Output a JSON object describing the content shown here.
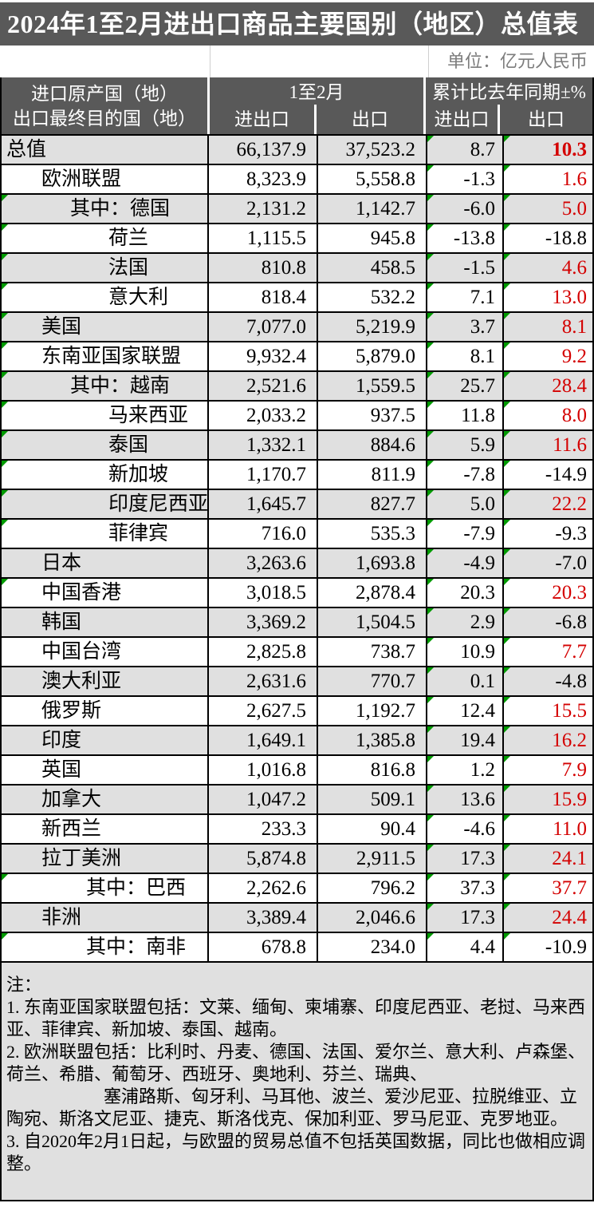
{
  "title": "2024年1至2月进出口商品主要国别（地区）总值表",
  "unit_label": "单位：亿元人民币",
  "colors": {
    "header_bg": "#595959",
    "alt_row_bg": "#e0e0e0",
    "positive_export_red": "#d40000",
    "corner_flag_green": "#009a00",
    "unit_text_gray": "#7c7c7c"
  },
  "header": {
    "name_col": [
      "进口原产国（地）",
      "出口最终目的国（地）"
    ],
    "group_month": "1至2月",
    "group_yoy": "累计比去年同期±%",
    "sub": [
      "进出口",
      "出口",
      "进出口",
      "出口"
    ]
  },
  "table": {
    "rows": [
      {
        "name": "总值",
        "indent": 0,
        "corner": false,
        "values": [
          "66,137.9",
          "37,523.2",
          "8.7",
          "10.3"
        ],
        "bold_export_pct": true
      },
      {
        "name": "欧洲联盟",
        "indent": 1,
        "corner": false,
        "values": [
          "8,323.9",
          "5,558.8",
          "-1.3",
          "1.6"
        ]
      },
      {
        "name": "其中：德国",
        "indent": 2,
        "corner": true,
        "values": [
          "2,131.2",
          "1,142.7",
          "-6.0",
          "5.0"
        ]
      },
      {
        "name": "荷兰",
        "indent": 4,
        "corner": true,
        "values": [
          "1,115.5",
          "945.8",
          "-13.8",
          "-18.8"
        ]
      },
      {
        "name": "法国",
        "indent": 4,
        "corner": true,
        "values": [
          "810.8",
          "458.5",
          "-1.5",
          "4.6"
        ]
      },
      {
        "name": "意大利",
        "indent": 4,
        "corner": true,
        "values": [
          "818.4",
          "532.2",
          "7.1",
          "13.0"
        ]
      },
      {
        "name": "美国",
        "indent": 1,
        "corner": true,
        "values": [
          "7,077.0",
          "5,219.9",
          "3.7",
          "8.1"
        ]
      },
      {
        "name": "东南亚国家联盟",
        "indent": 1,
        "corner": true,
        "values": [
          "9,932.4",
          "5,879.0",
          "8.1",
          "9.2"
        ]
      },
      {
        "name": "其中：越南",
        "indent": 2,
        "corner": true,
        "values": [
          "2,521.6",
          "1,559.5",
          "25.7",
          "28.4"
        ]
      },
      {
        "name": "马来西亚",
        "indent": 4,
        "corner": true,
        "values": [
          "2,033.2",
          "937.5",
          "11.8",
          "8.0"
        ]
      },
      {
        "name": "泰国",
        "indent": 4,
        "corner": true,
        "values": [
          "1,332.1",
          "884.6",
          "5.9",
          "11.6"
        ]
      },
      {
        "name": "新加坡",
        "indent": 4,
        "corner": true,
        "values": [
          "1,170.7",
          "811.9",
          "-7.8",
          "-14.9"
        ]
      },
      {
        "name": "印度尼西亚",
        "indent": 4,
        "corner": true,
        "values": [
          "1,645.7",
          "827.7",
          "5.0",
          "22.2"
        ]
      },
      {
        "name": "菲律宾",
        "indent": 4,
        "corner": true,
        "values": [
          "716.0",
          "535.3",
          "-7.9",
          "-9.3"
        ]
      },
      {
        "name": "日本",
        "indent": 1,
        "corner": false,
        "values": [
          "3,263.6",
          "1,693.8",
          "-4.9",
          "-7.0"
        ]
      },
      {
        "name": "中国香港",
        "indent": 1,
        "corner": true,
        "values": [
          "3,018.5",
          "2,878.4",
          "20.3",
          "20.3"
        ]
      },
      {
        "name": "韩国",
        "indent": 1,
        "corner": false,
        "values": [
          "3,369.2",
          "1,504.5",
          "2.9",
          "-6.8"
        ]
      },
      {
        "name": "中国台湾",
        "indent": 1,
        "corner": false,
        "values": [
          "2,825.8",
          "738.7",
          "10.9",
          "7.7"
        ]
      },
      {
        "name": "澳大利亚",
        "indent": 1,
        "corner": false,
        "values": [
          "2,631.6",
          "770.7",
          "0.1",
          "-4.8"
        ]
      },
      {
        "name": "俄罗斯",
        "indent": 1,
        "corner": false,
        "values": [
          "2,627.5",
          "1,192.7",
          "12.4",
          "15.5"
        ]
      },
      {
        "name": "印度",
        "indent": 1,
        "corner": false,
        "values": [
          "1,649.1",
          "1,385.8",
          "19.4",
          "16.2"
        ]
      },
      {
        "name": "英国",
        "indent": 1,
        "corner": false,
        "values": [
          "1,016.8",
          "816.8",
          "1.2",
          "7.9"
        ]
      },
      {
        "name": "加拿大",
        "indent": 1,
        "corner": false,
        "values": [
          "1,047.2",
          "509.1",
          "13.6",
          "15.9"
        ]
      },
      {
        "name": "新西兰",
        "indent": 1,
        "corner": false,
        "values": [
          "233.3",
          "90.4",
          "-4.6",
          "11.0"
        ]
      },
      {
        "name": "拉丁美洲",
        "indent": 1,
        "corner": false,
        "values": [
          "5,874.8",
          "2,911.5",
          "17.3",
          "24.1"
        ]
      },
      {
        "name": "其中：巴西",
        "indent": 3,
        "corner": true,
        "values": [
          "2,262.6",
          "796.2",
          "37.3",
          "37.7"
        ]
      },
      {
        "name": "非洲",
        "indent": 1,
        "corner": false,
        "values": [
          "3,389.4",
          "2,046.6",
          "17.3",
          "24.4"
        ]
      },
      {
        "name": "其中：南非",
        "indent": 3,
        "corner": true,
        "values": [
          "678.8",
          "234.0",
          "4.4",
          "-10.9"
        ]
      }
    ]
  },
  "notes": {
    "label": "注：",
    "note1": "1.  东南亚国家联盟包括：文莱、缅甸、柬埔寨、印度尼西亚、老挝、马来西亚、菲律宾、新加坡、泰国、越南。",
    "note2a": "2.  欧洲联盟包括：比利时、丹麦、德国、法国、爱尔兰、意大利、卢森堡、荷兰、希腊、葡萄牙、西班牙、奥地利、芬兰、瑞典、",
    "note2b": "塞浦路斯、匈牙利、马耳他、波兰、爱沙尼亚、拉脱维亚、立陶宛、斯洛文尼亚、捷克、斯洛伐克、保加利亚、罗马尼亚、克罗地亚。",
    "note3": "3.  自2020年2月1日起，与欧盟的贸易总值不包括英国数据，同比也做相应调整。"
  }
}
